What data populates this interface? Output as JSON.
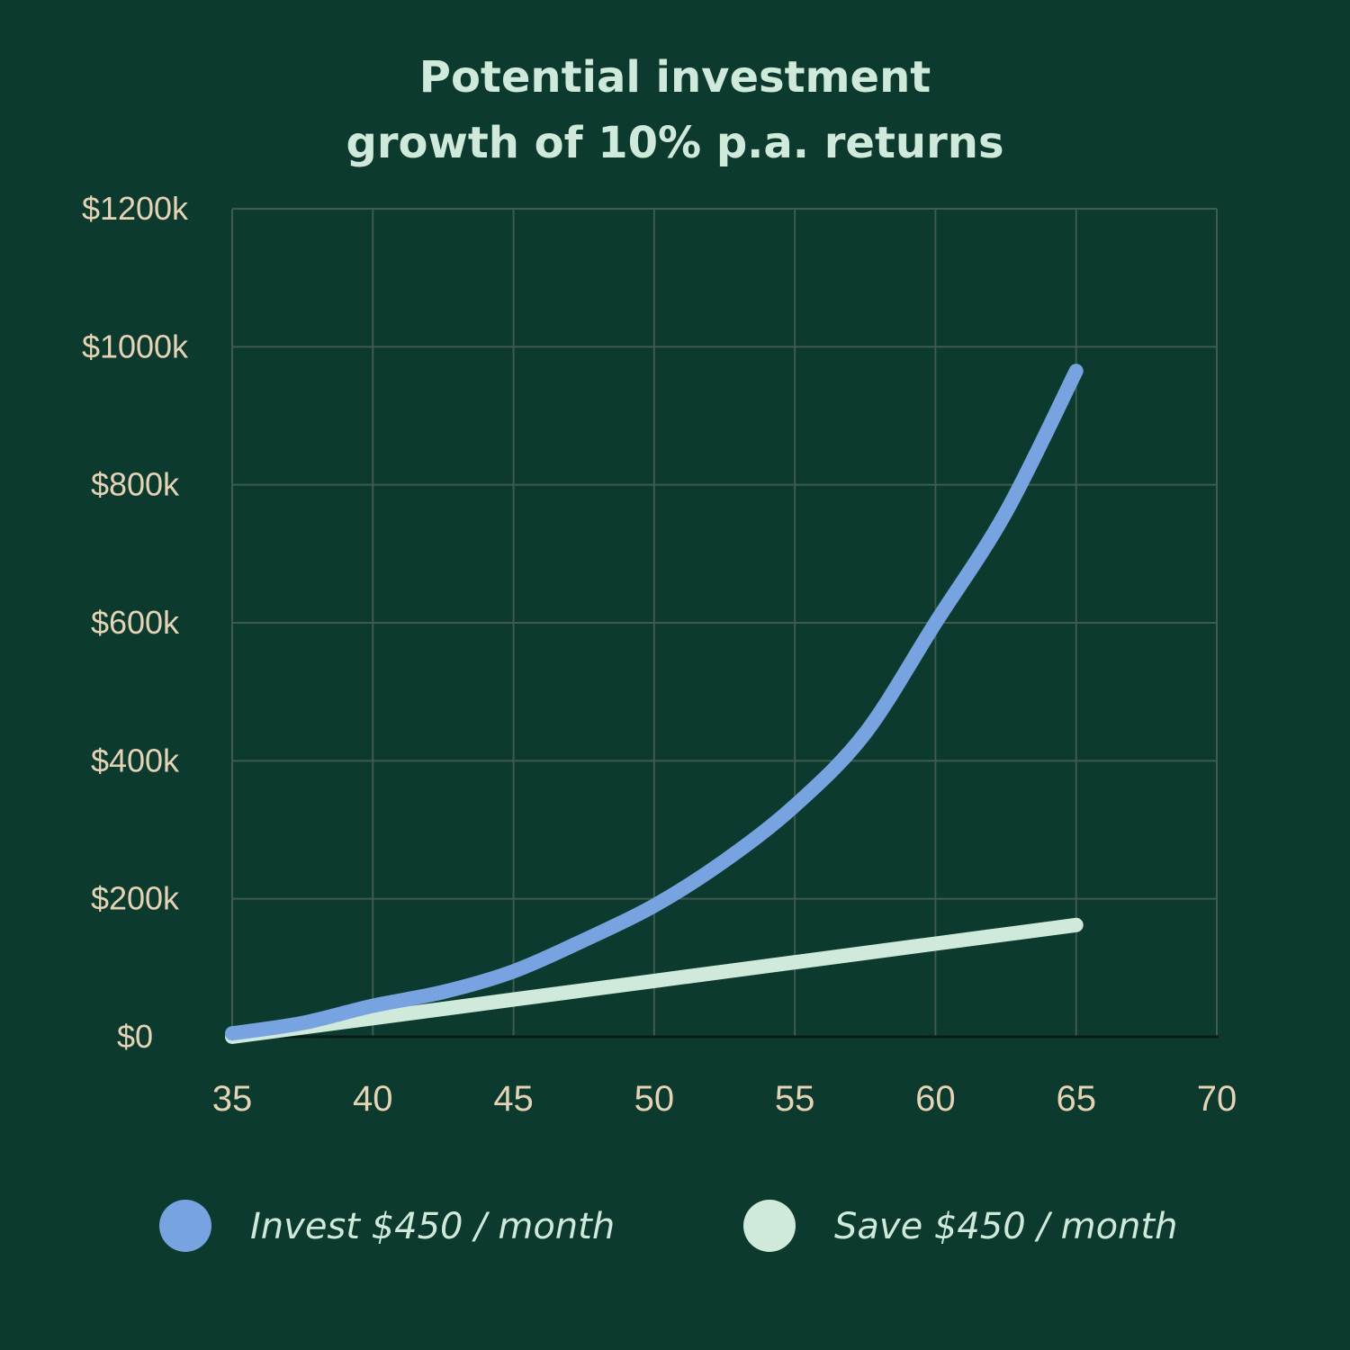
{
  "colors": {
    "background": "#0c3a2e",
    "title": "#cfe9da",
    "tick_label": "#e4d3b4",
    "grid": "#3f5a4f",
    "axis": "#0a1a14",
    "legend_text": "#cfe9da"
  },
  "chart_data": {
    "type": "line",
    "title": [
      "Potential investment",
      "growth of 10% p.a. returns"
    ],
    "xlabel": "",
    "ylabel": "",
    "xlim": [
      35,
      70
    ],
    "ylim": [
      0,
      1200
    ],
    "x_ticks": [
      35,
      40,
      45,
      50,
      55,
      60,
      65,
      70
    ],
    "x_tick_labels": [
      "35",
      "40",
      "45",
      "50",
      "55",
      "60",
      "65",
      "70"
    ],
    "y_ticks": [
      0,
      200,
      400,
      600,
      800,
      1000,
      1200
    ],
    "y_tick_labels": [
      "$0",
      "$200k",
      "$400k",
      "$600k",
      "$800k",
      "$1000k",
      "$1200k"
    ],
    "y_unit": "thousands of dollars",
    "grid": true,
    "legend_position": "bottom",
    "series": [
      {
        "name": "Invest $450 / month",
        "color": "#77a4e0",
        "x": [
          35,
          37.5,
          40,
          42.5,
          45,
          47.5,
          50,
          52.5,
          55,
          57.5,
          60,
          62.5,
          65
        ],
        "y": [
          5,
          20,
          45,
          65,
          95,
          140,
          190,
          255,
          335,
          440,
          600,
          760,
          965
        ]
      },
      {
        "name": "Save $450 / month",
        "color": "#cfe9da",
        "x": [
          35,
          40,
          45,
          50,
          55,
          60,
          65
        ],
        "y": [
          0,
          27,
          54,
          81,
          108,
          135,
          162
        ]
      }
    ]
  }
}
